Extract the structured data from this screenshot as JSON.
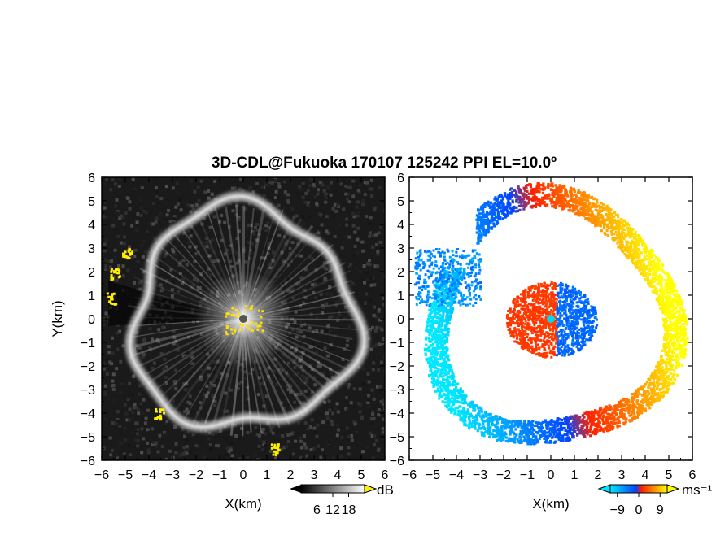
{
  "title": "3D-CDL@Fukuoka 170107 125242 PPI EL=10.0º",
  "chart_data": [
    {
      "type": "heatmap",
      "panel": "left",
      "quantity": "reflectivity",
      "xlabel": "X(km)",
      "ylabel": "Y(km)",
      "xlim": [
        -6,
        6
      ],
      "ylim": [
        -6,
        6
      ],
      "xticks": [
        -6,
        -5,
        -4,
        -3,
        -2,
        -1,
        0,
        1,
        2,
        3,
        4,
        5,
        6
      ],
      "yticks": [
        -6,
        -5,
        -4,
        -3,
        -2,
        -1,
        0,
        1,
        2,
        3,
        4,
        5,
        6
      ],
      "ring_radius_km": 4.7,
      "colorbar": {
        "unit": "dB",
        "ticks": [
          6,
          12,
          18
        ],
        "range": [
          0,
          24
        ],
        "colors": [
          "#000000",
          "#ffffff"
        ],
        "over_color": "#ffee00"
      },
      "high_echo_patches_km": [
        [
          -4.95,
          2.8
        ],
        [
          -5.45,
          1.9
        ],
        [
          -5.6,
          0.9
        ],
        [
          -3.6,
          -4.0
        ],
        [
          1.3,
          -5.5
        ],
        [
          0,
          0
        ]
      ]
    },
    {
      "type": "heatmap",
      "panel": "right",
      "quantity": "radial velocity",
      "xlabel": "X(km)",
      "ylabel": "",
      "xlim": [
        -6,
        6
      ],
      "ylim": [
        -6,
        6
      ],
      "xticks": [
        -6,
        -5,
        -4,
        -3,
        -2,
        -1,
        0,
        1,
        2,
        3,
        4,
        5,
        6
      ],
      "yticks": [
        -6,
        -5,
        -4,
        -3,
        -2,
        -1,
        0,
        1,
        2,
        3,
        4,
        5,
        6
      ],
      "ring_radius_km": 4.7,
      "colorbar": {
        "unit": "ms⁻¹",
        "ticks": [
          -9,
          0,
          9
        ],
        "range": [
          -12,
          12
        ],
        "colors": [
          "#00e8ff",
          "#0044ff",
          "#ff2000",
          "#ffff00"
        ]
      }
    }
  ]
}
